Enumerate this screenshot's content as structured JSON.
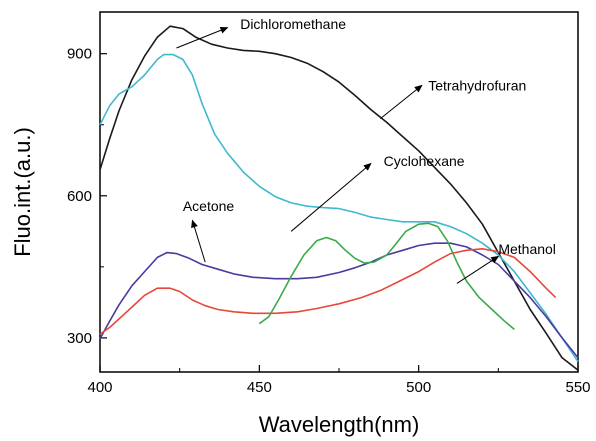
{
  "chart_data": {
    "type": "line",
    "title": "",
    "xlabel": "Wavelength(nm)",
    "ylabel": "Fluo.int.(a.u.)",
    "xlim": [
      400,
      550
    ],
    "ylim": [
      228,
      988
    ],
    "x_ticks": [
      400,
      450,
      500,
      550
    ],
    "y_ticks": [
      300,
      600,
      900
    ],
    "grid": false,
    "legend": "none",
    "series": [
      {
        "key": "dichloromethane",
        "color": "#1a1a1a",
        "points": [
          [
            400,
            655
          ],
          [
            403,
            720
          ],
          [
            406,
            780
          ],
          [
            410,
            845
          ],
          [
            414,
            895
          ],
          [
            418,
            935
          ],
          [
            422,
            958
          ],
          [
            426,
            953
          ],
          [
            430,
            935
          ],
          [
            435,
            920
          ],
          [
            440,
            912
          ],
          [
            445,
            907
          ],
          [
            450,
            905
          ],
          [
            455,
            900
          ],
          [
            460,
            892
          ],
          [
            465,
            880
          ],
          [
            470,
            862
          ],
          [
            475,
            840
          ],
          [
            480,
            812
          ],
          [
            485,
            782
          ],
          [
            490,
            755
          ],
          [
            495,
            725
          ],
          [
            500,
            695
          ],
          [
            505,
            660
          ],
          [
            510,
            625
          ],
          [
            515,
            585
          ],
          [
            520,
            540
          ],
          [
            525,
            480
          ],
          [
            530,
            420
          ],
          [
            535,
            360
          ],
          [
            540,
            310
          ],
          [
            545,
            258
          ],
          [
            550,
            232
          ]
        ]
      },
      {
        "key": "tetrahydrofuran",
        "color": "#3fb8d0",
        "points": [
          [
            400,
            750
          ],
          [
            403,
            790
          ],
          [
            406,
            815
          ],
          [
            410,
            830
          ],
          [
            414,
            855
          ],
          [
            418,
            888
          ],
          [
            420,
            898
          ],
          [
            423,
            898
          ],
          [
            426,
            888
          ],
          [
            429,
            855
          ],
          [
            432,
            795
          ],
          [
            436,
            730
          ],
          [
            440,
            690
          ],
          [
            445,
            650
          ],
          [
            450,
            620
          ],
          [
            455,
            598
          ],
          [
            460,
            585
          ],
          [
            465,
            578
          ],
          [
            470,
            575
          ],
          [
            475,
            573
          ],
          [
            480,
            565
          ],
          [
            485,
            555
          ],
          [
            490,
            550
          ],
          [
            495,
            545
          ],
          [
            500,
            545
          ],
          [
            505,
            545
          ],
          [
            510,
            535
          ],
          [
            515,
            520
          ],
          [
            520,
            500
          ],
          [
            525,
            475
          ],
          [
            530,
            440
          ],
          [
            535,
            395
          ],
          [
            540,
            350
          ],
          [
            545,
            300
          ],
          [
            550,
            250
          ]
        ]
      },
      {
        "key": "acetone",
        "color": "#4a3b9e",
        "points": [
          [
            400,
            298
          ],
          [
            403,
            335
          ],
          [
            406,
            370
          ],
          [
            410,
            410
          ],
          [
            414,
            440
          ],
          [
            418,
            470
          ],
          [
            421,
            480
          ],
          [
            424,
            478
          ],
          [
            428,
            468
          ],
          [
            432,
            455
          ],
          [
            437,
            445
          ],
          [
            442,
            435
          ],
          [
            448,
            428
          ],
          [
            455,
            425
          ],
          [
            462,
            425
          ],
          [
            468,
            428
          ],
          [
            475,
            438
          ],
          [
            480,
            448
          ],
          [
            485,
            460
          ],
          [
            490,
            475
          ],
          [
            495,
            485
          ],
          [
            500,
            495
          ],
          [
            505,
            500
          ],
          [
            510,
            500
          ],
          [
            515,
            492
          ],
          [
            520,
            475
          ],
          [
            525,
            455
          ],
          [
            530,
            420
          ],
          [
            535,
            385
          ],
          [
            540,
            345
          ],
          [
            545,
            300
          ],
          [
            550,
            258
          ]
        ]
      },
      {
        "key": "methanol",
        "color": "#e8483a",
        "points": [
          [
            400,
            308
          ],
          [
            403,
            322
          ],
          [
            406,
            340
          ],
          [
            410,
            365
          ],
          [
            414,
            390
          ],
          [
            418,
            405
          ],
          [
            422,
            405
          ],
          [
            425,
            398
          ],
          [
            429,
            380
          ],
          [
            433,
            368
          ],
          [
            437,
            360
          ],
          [
            442,
            355
          ],
          [
            448,
            352
          ],
          [
            455,
            352
          ],
          [
            462,
            355
          ],
          [
            468,
            362
          ],
          [
            475,
            372
          ],
          [
            482,
            385
          ],
          [
            488,
            400
          ],
          [
            494,
            420
          ],
          [
            500,
            440
          ],
          [
            505,
            460
          ],
          [
            510,
            478
          ],
          [
            515,
            485
          ],
          [
            520,
            488
          ],
          [
            525,
            482
          ],
          [
            530,
            470
          ],
          [
            535,
            440
          ],
          [
            540,
            405
          ],
          [
            543,
            385
          ]
        ]
      },
      {
        "key": "cyclohexane",
        "color": "#3aaa4a",
        "points": [
          [
            450,
            330
          ],
          [
            453,
            345
          ],
          [
            456,
            380
          ],
          [
            460,
            430
          ],
          [
            464,
            475
          ],
          [
            468,
            505
          ],
          [
            471,
            512
          ],
          [
            474,
            505
          ],
          [
            477,
            485
          ],
          [
            480,
            468
          ],
          [
            483,
            458
          ],
          [
            486,
            460
          ],
          [
            490,
            475
          ],
          [
            493,
            500
          ],
          [
            496,
            525
          ],
          [
            500,
            540
          ],
          [
            503,
            542
          ],
          [
            506,
            535
          ],
          [
            509,
            505
          ],
          [
            512,
            460
          ],
          [
            515,
            420
          ],
          [
            519,
            385
          ],
          [
            523,
            360
          ],
          [
            527,
            335
          ],
          [
            530,
            318
          ]
        ]
      }
    ],
    "annotations": [
      {
        "key": "dichloromethane",
        "text": "Dichloromethane",
        "label_at": [
          444,
          963
        ],
        "arrow_from": [
          424,
          912
        ],
        "arrow_to": [
          440,
          955
        ]
      },
      {
        "key": "tetrahydrofuran",
        "text": "Tetrahydrofuran",
        "label_at": [
          503,
          833
        ],
        "arrow_from": [
          488,
          763
        ],
        "arrow_to": [
          501,
          833
        ]
      },
      {
        "key": "cyclohexane",
        "text": "Cyclohexane",
        "label_at": [
          489,
          673
        ],
        "arrow_from": [
          460,
          525
        ],
        "arrow_to": [
          485,
          668
        ]
      },
      {
        "key": "acetone",
        "text": "Acetone",
        "label_at": [
          426,
          578
        ],
        "arrow_from": [
          433,
          460
        ],
        "arrow_to": [
          429,
          548
        ]
      },
      {
        "key": "methanol",
        "text": "Methanol",
        "label_at": [
          525,
          488
        ],
        "arrow_from": [
          512,
          415
        ],
        "arrow_to": [
          525,
          472
        ]
      }
    ]
  }
}
